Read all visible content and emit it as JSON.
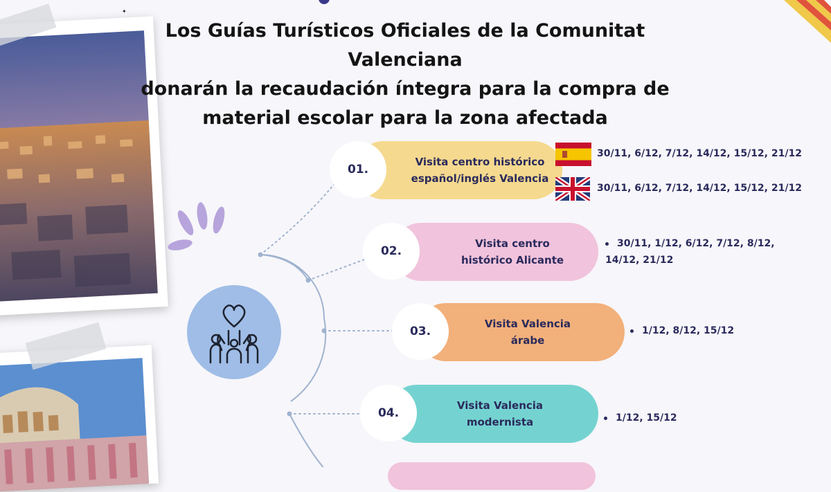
{
  "title": {
    "line1": "Los Guías Turísticos Oficiales de la Comunitat",
    "line2": "Valenciana",
    "line3": "donarán la recaudación íntegra para la compra de",
    "line4": "material escolar para la zona afectada"
  },
  "items": [
    {
      "num": "01.",
      "label_line1": "Visita centro histórico",
      "label_line2": "español/inglés Valencia",
      "color": "#f5d98e",
      "dates_es": "30/11, 6/12, 7/12, 14/12, 15/12, 21/12",
      "dates_en": "30/11, 6/12, 7/12, 14/12, 15/12, 21/12"
    },
    {
      "num": "02.",
      "label_line1": "Visita centro",
      "label_line2": "histórico Alicante",
      "color": "#f1c3dc",
      "dates_line1": "30/11, 1/12, 6/12, 7/12, 8/12,",
      "dates_line2": "14/12, 21/12"
    },
    {
      "num": "03.",
      "label_line1": "Visita Valencia",
      "label_line2": "árabe",
      "color": "#f2b07a",
      "dates": "1/12, 8/12, 15/12"
    },
    {
      "num": "04.",
      "label_line1": "Visita Valencia",
      "label_line2": "modernista",
      "color": "#74d3d0",
      "dates": "1/12, 15/12"
    }
  ],
  "colors": {
    "text_dark": "#2a2a5c",
    "hub_circle": "#9fbde6",
    "connector": "#9fb3cf",
    "leaf": "#b7a4dc"
  },
  "icons": {
    "hub": "heart-hands-icon",
    "flag_1": "spain-flag-icon",
    "flag_2": "uk-flag-icon"
  }
}
